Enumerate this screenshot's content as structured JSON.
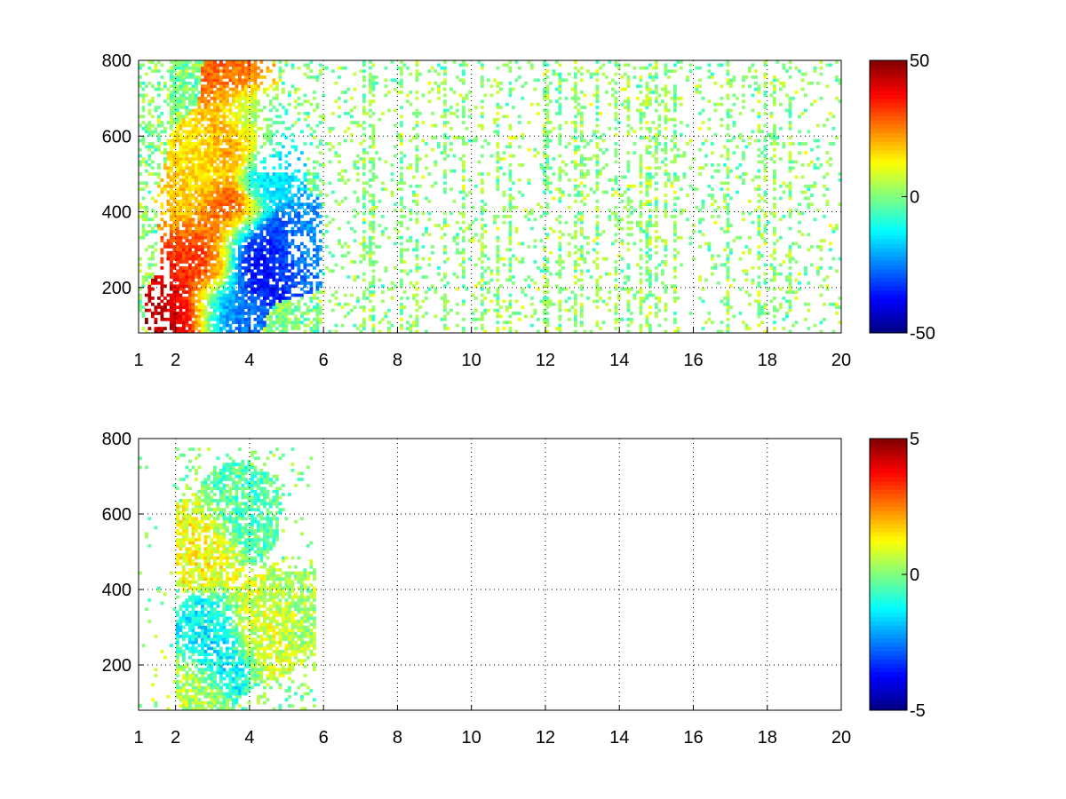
{
  "chart_data": [
    {
      "type": "heatmap",
      "title": "",
      "xlabel": "",
      "ylabel": "",
      "xlim": [
        1,
        20
      ],
      "ylim": [
        80,
        800
      ],
      "xticks": [
        1,
        2,
        4,
        6,
        8,
        10,
        12,
        14,
        16,
        18,
        20
      ],
      "yticks": [
        200,
        400,
        600,
        800
      ],
      "grid": true,
      "colormap": "jet",
      "colorbar": {
        "clim": [
          -50,
          50
        ],
        "ticks": [
          -50,
          0,
          50
        ]
      },
      "nan_color": "#ffffff",
      "description_of_field": [
        {
          "x": 2.2,
          "y": 135,
          "value": 45
        },
        {
          "x": 2.5,
          "y": 140,
          "value": 42
        },
        {
          "x": 2.8,
          "y": 260,
          "value": 38
        },
        {
          "x": 2.6,
          "y": 280,
          "value": 32
        },
        {
          "x": 3.0,
          "y": 300,
          "value": 25
        },
        {
          "x": 2.5,
          "y": 420,
          "value": 18
        },
        {
          "x": 2.8,
          "y": 550,
          "value": 15
        },
        {
          "x": 3.5,
          "y": 380,
          "value": 35
        },
        {
          "x": 3.7,
          "y": 600,
          "value": 30
        },
        {
          "x": 3.7,
          "y": 740,
          "value": 28
        },
        {
          "x": 3.0,
          "y": 150,
          "value": -30
        },
        {
          "x": 3.4,
          "y": 130,
          "value": -25
        },
        {
          "x": 3.8,
          "y": 300,
          "value": -42
        },
        {
          "x": 4.3,
          "y": 280,
          "value": -38
        },
        {
          "x": 5.1,
          "y": 300,
          "value": -30
        },
        {
          "x": 5.6,
          "y": 320,
          "value": -22
        },
        {
          "x": 4.5,
          "y": 500,
          "value": -15
        },
        {
          "x": 4.0,
          "y": 650,
          "value": -10
        }
      ]
    },
    {
      "type": "heatmap",
      "title": "",
      "xlabel": "",
      "ylabel": "",
      "xlim": [
        1,
        20
      ],
      "ylim": [
        80,
        800
      ],
      "xticks": [
        1,
        2,
        4,
        6,
        8,
        10,
        12,
        14,
        16,
        18,
        20
      ],
      "yticks": [
        200,
        400,
        600,
        800
      ],
      "grid": true,
      "colormap": "jet",
      "colorbar": {
        "clim": [
          -5,
          5
        ],
        "ticks": [
          -5,
          0,
          5
        ]
      },
      "nan_color": "#ffffff",
      "description_of_field": [
        {
          "x": 2.5,
          "y": 140,
          "value": 0.5
        },
        {
          "x": 3.0,
          "y": 260,
          "value": -1.2
        },
        {
          "x": 3.3,
          "y": 240,
          "value": -1.8
        },
        {
          "x": 4.0,
          "y": 280,
          "value": 0.8
        },
        {
          "x": 4.5,
          "y": 300,
          "value": 1.0
        },
        {
          "x": 3.7,
          "y": 600,
          "value": -0.5
        },
        {
          "x": 5.3,
          "y": 350,
          "value": 0.3
        },
        {
          "x": 2.8,
          "y": 520,
          "value": 1.2
        }
      ]
    }
  ]
}
